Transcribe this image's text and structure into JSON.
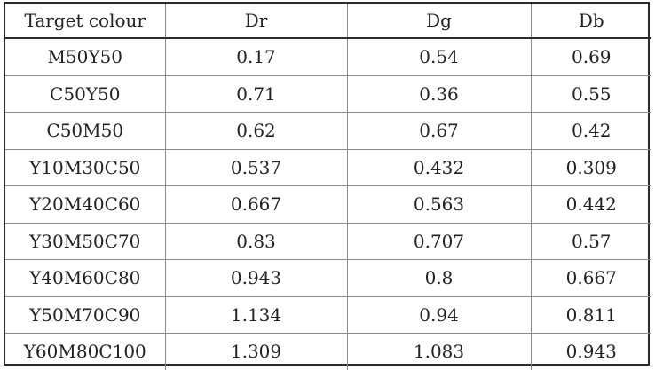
{
  "table": {
    "headers": [
      "Target colour",
      "Dr",
      "Dg",
      "Db"
    ],
    "rows": [
      [
        "M50Y50",
        "0.17",
        "0.54",
        "0.69"
      ],
      [
        "C50Y50",
        "0.71",
        "0.36",
        "0.55"
      ],
      [
        "C50M50",
        "0.62",
        "0.67",
        "0.42"
      ],
      [
        "Y10M30C50",
        "0.537",
        "0.432",
        "0.309"
      ],
      [
        "Y20M40C60",
        "0.667",
        "0.563",
        "0.442"
      ],
      [
        "Y30M50C70",
        "0.83",
        "0.707",
        "0.57"
      ],
      [
        "Y40M60C80",
        "0.943",
        "0.8",
        "0.667"
      ],
      [
        "Y50M70C90",
        "1.134",
        "0.94",
        "0.811"
      ],
      [
        "Y60M80C100",
        "1.309",
        "1.083",
        "0.943"
      ]
    ]
  }
}
